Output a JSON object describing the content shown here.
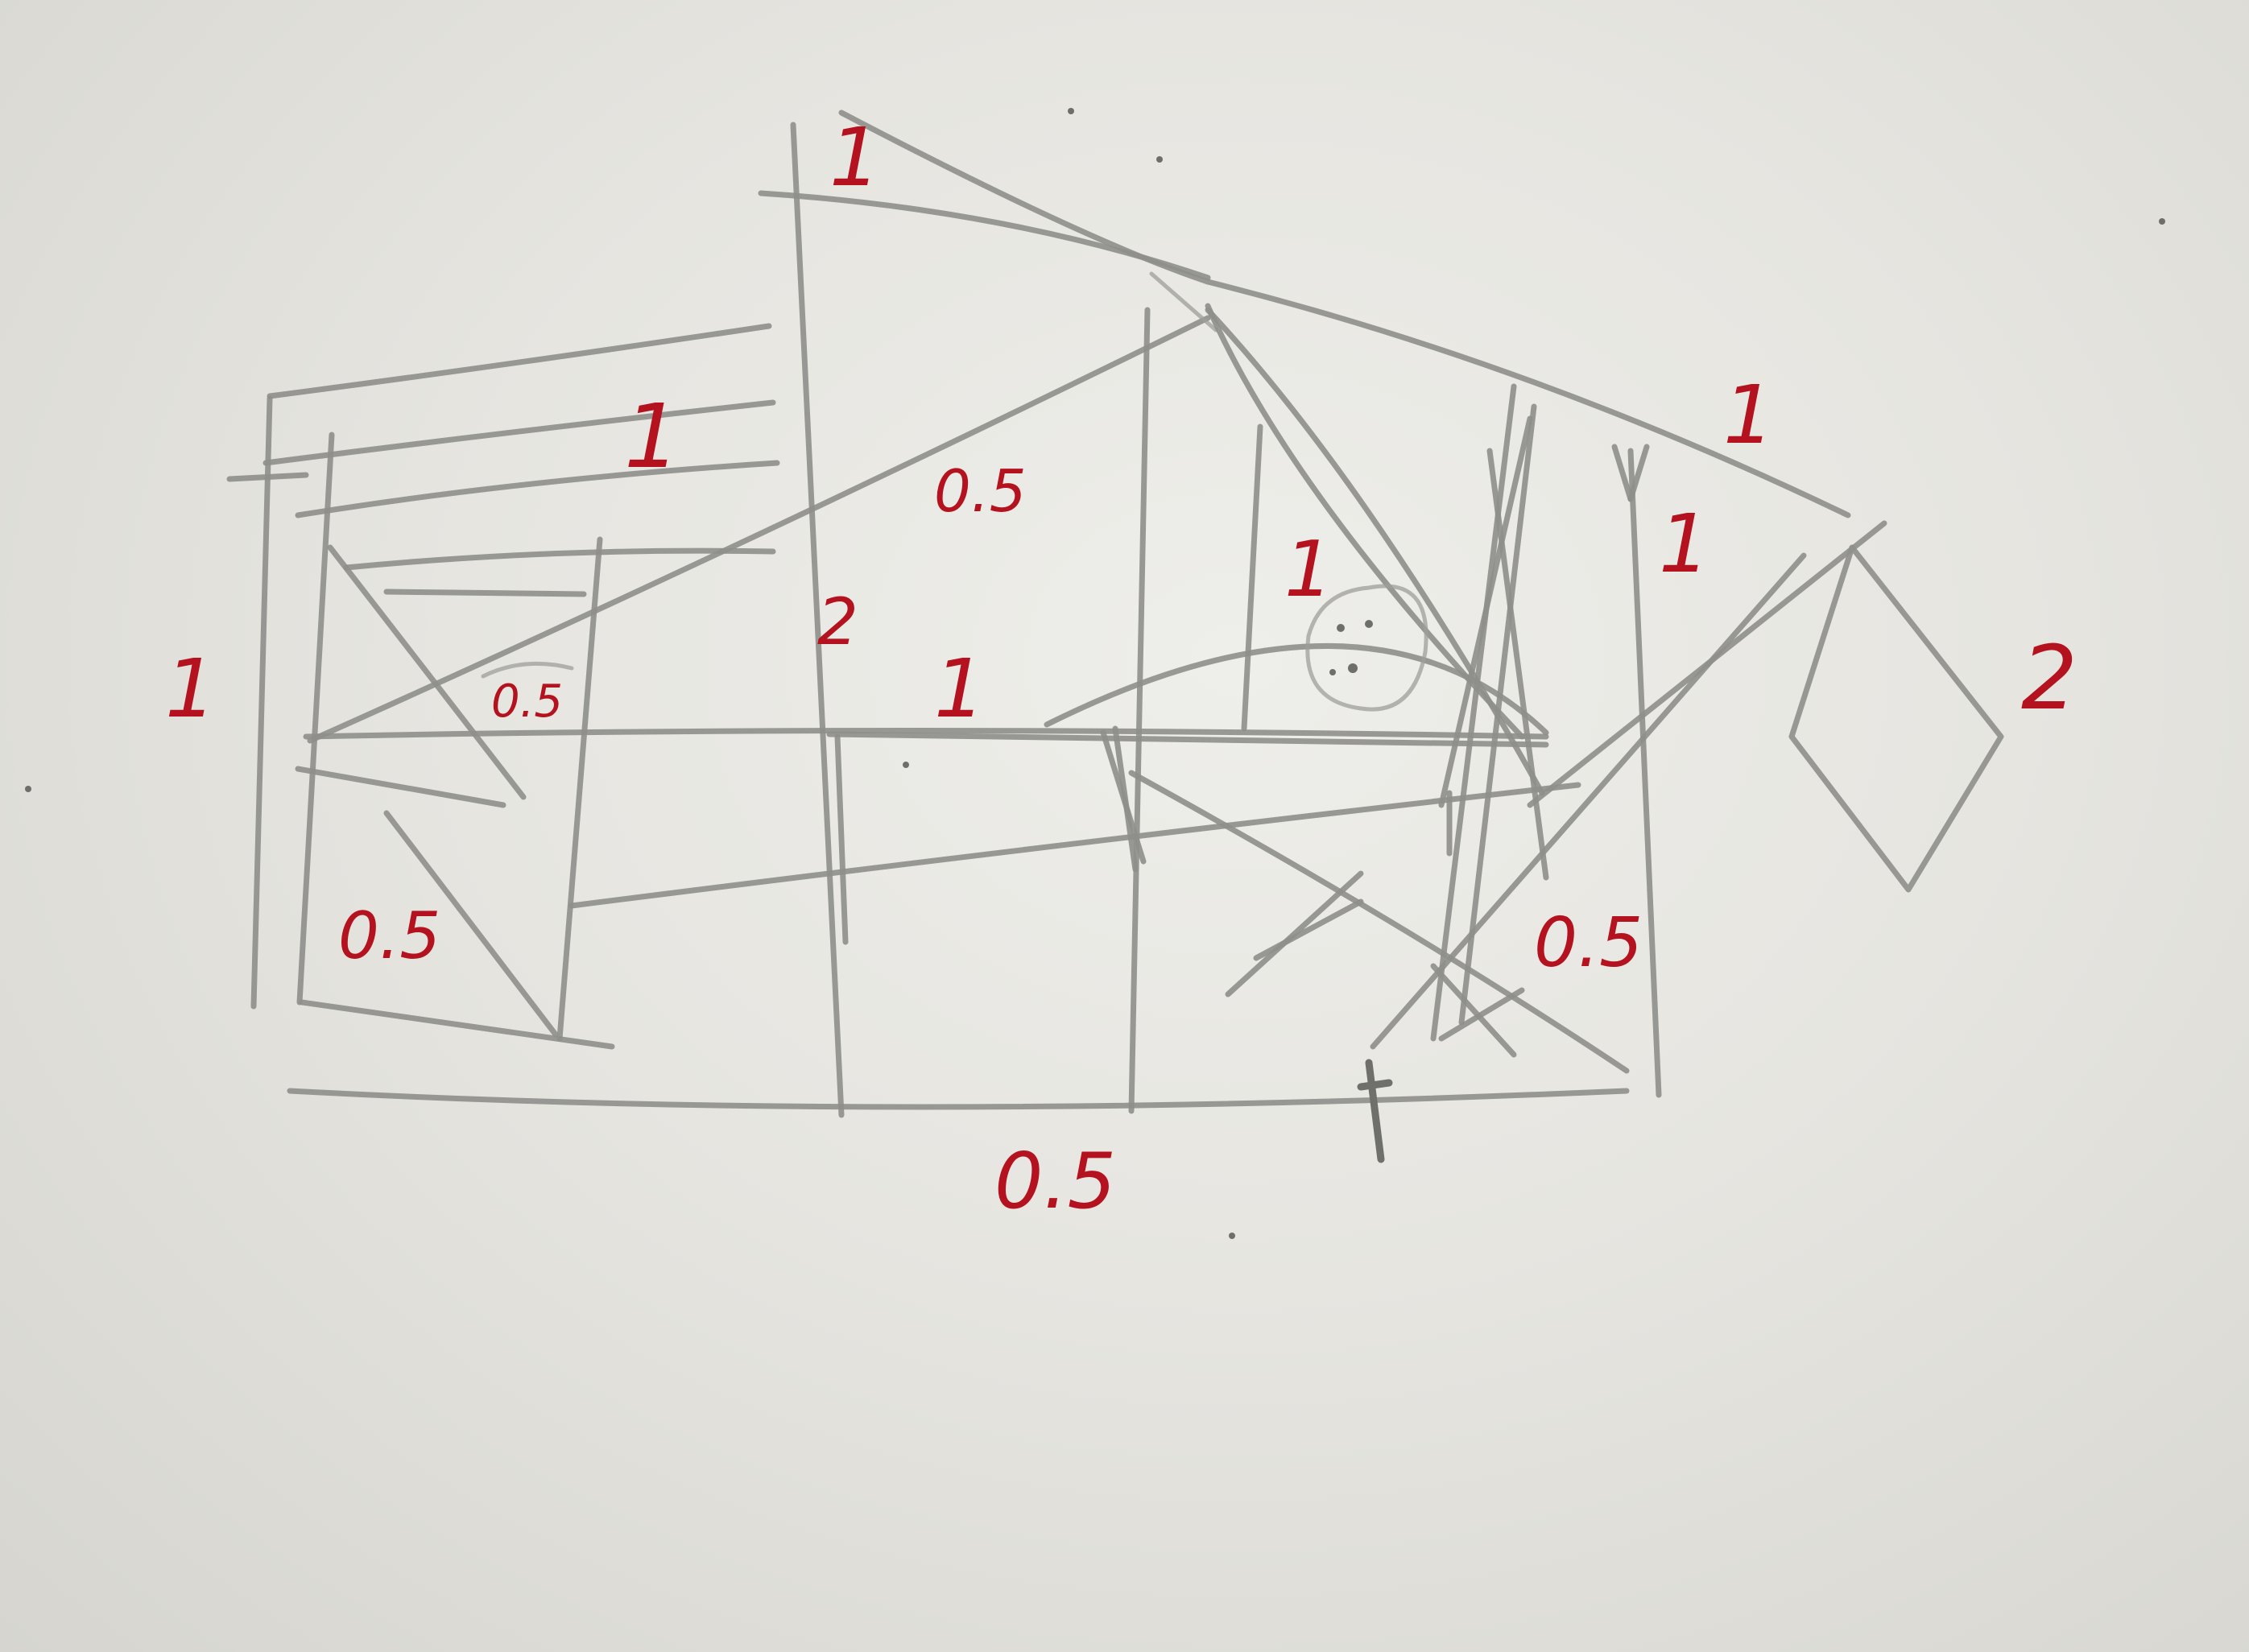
{
  "labels": {
    "top_left_wall": "1",
    "top_peak": "1",
    "roof_slope": "0.5",
    "left_edge": "1",
    "small_triangle": "0.5",
    "lower_left": "0.5",
    "center_post": "2",
    "middle_beam": "1",
    "face_area": "1",
    "right_roof": "1",
    "right_post": "1",
    "right_lower": "0.5",
    "kite": "2",
    "bottom": "0.5"
  },
  "colors": {
    "paper": "#e8e7e2",
    "pencil": "#8e8e8b",
    "ink": "#b4121e"
  }
}
